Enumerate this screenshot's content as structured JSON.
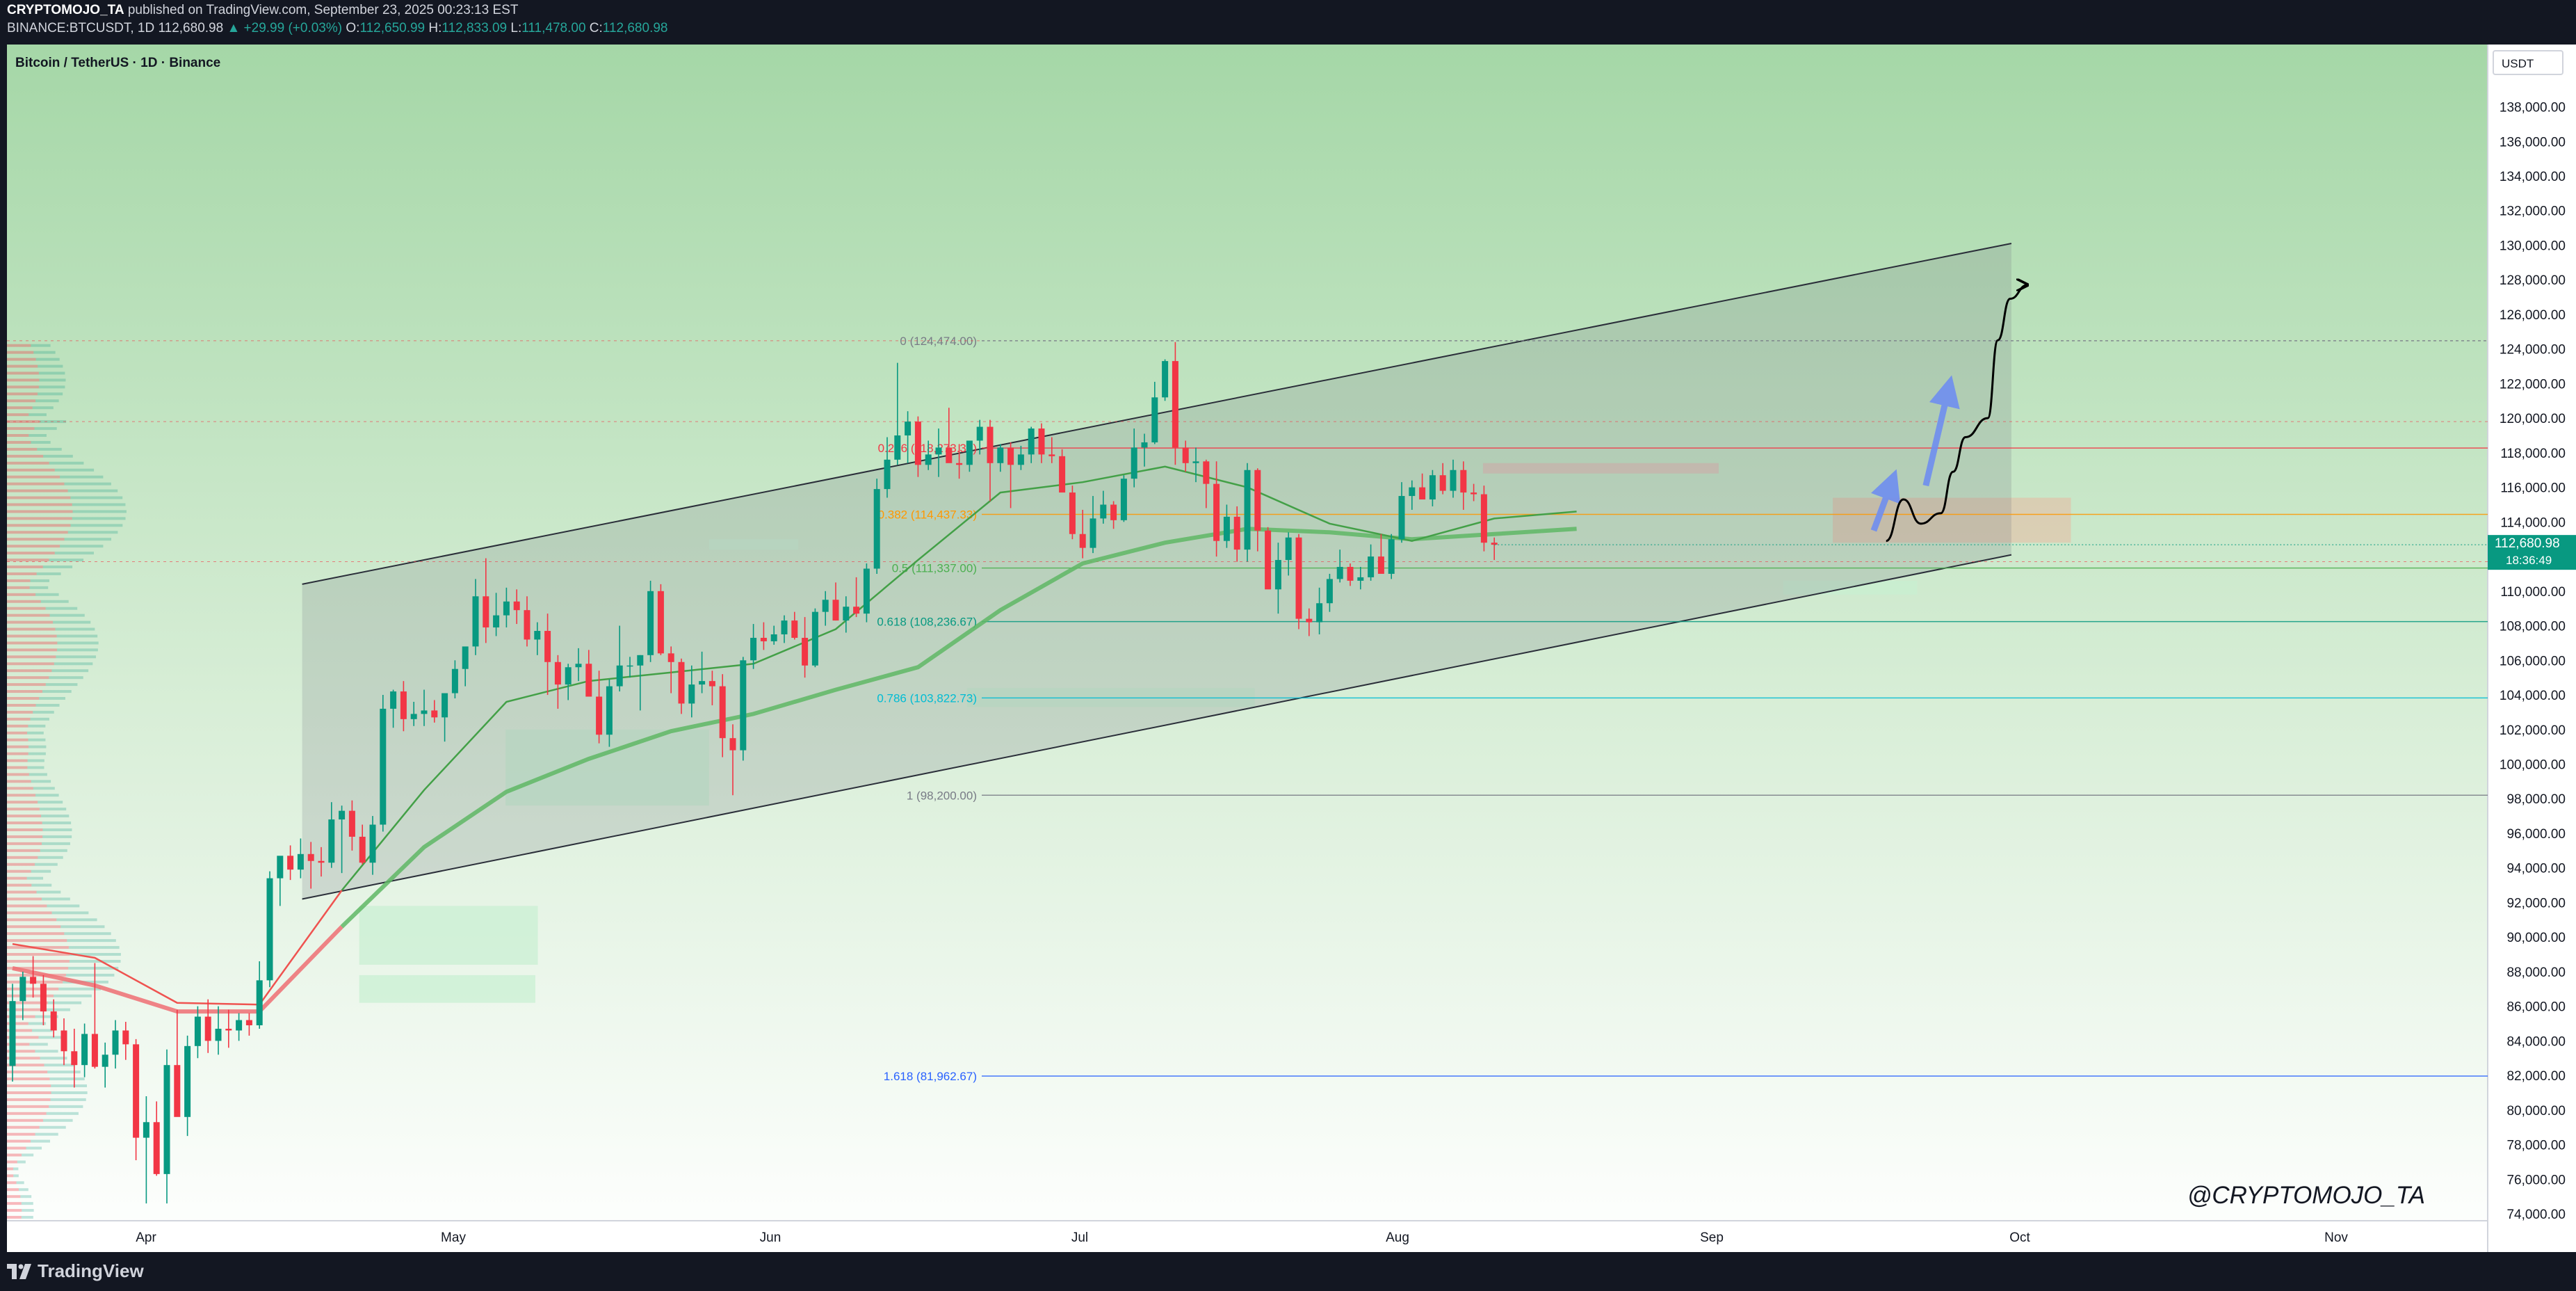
{
  "header": {
    "publisher": "CRYPTOMOJO_TA",
    "published_text": "published on TradingView.com, September 23, 2025 00:23:13 EST",
    "symbol": "BINANCE:BTCUSDT, 1D",
    "last": "112,680.98",
    "change": "▲ +29.99 (+0.03%)",
    "o_label": "O:",
    "o": "112,650.99",
    "h_label": "H:",
    "h": "112,833.09",
    "l_label": "L:",
    "l": "111,478.00",
    "c_label": "C:",
    "c": "112,680.98"
  },
  "footer": {
    "brand": "TradingView"
  },
  "chart_data": {
    "type": "candlestick",
    "title": "Bitcoin / TetherUS · 1D · Binance",
    "currency": "USDT",
    "watermark": "@CRYPTOMOJO_TA",
    "ylim": [
      73600,
      141600
    ],
    "y_ticks": [
      74000,
      76000,
      78000,
      80000,
      82000,
      84000,
      86000,
      88000,
      90000,
      92000,
      94000,
      96000,
      98000,
      100000,
      102000,
      104000,
      106000,
      108000,
      110000,
      112000,
      114000,
      116000,
      118000,
      120000,
      122000,
      124000,
      126000,
      128000,
      130000,
      132000,
      134000,
      136000,
      138000
    ],
    "x_ticks": [
      "Apr",
      "May",
      "Jun",
      "Jul",
      "Aug",
      "Sep",
      "Oct",
      "Nov"
    ],
    "last_price": "112,680.98",
    "countdown": "18:36:49",
    "fib_levels": [
      {
        "label": "0 (124,474.00)",
        "value": 124474,
        "color": "#787b86"
      },
      {
        "label": "0.236 (118,273.34)",
        "value": 118273.34,
        "color": "#f23645"
      },
      {
        "label": "0.382 (114,437.33)",
        "value": 114437.33,
        "color": "#ff9800"
      },
      {
        "label": "0.5 (111,337.00)",
        "value": 111337,
        "color": "#4caf50"
      },
      {
        "label": "0.618 (108,236.67)",
        "value": 108236.67,
        "color": "#089981"
      },
      {
        "label": "0.786 (103,822.73)",
        "value": 103822.73,
        "color": "#00bcd4"
      },
      {
        "label": "1 (98,200.00)",
        "value": 98200,
        "color": "#787b86"
      },
      {
        "label": "1.618 (81,962.67)",
        "value": 81962.67,
        "color": "#2962ff"
      }
    ],
    "candles_ohlc": [
      [
        82550,
        87300,
        81650,
        86300
      ],
      [
        86300,
        88000,
        85200,
        87700
      ],
      [
        87700,
        88900,
        86500,
        87300
      ],
      [
        87300,
        87800,
        84900,
        85700
      ],
      [
        85700,
        86400,
        84200,
        84600
      ],
      [
        84600,
        85300,
        82600,
        83400
      ],
      [
        83400,
        84700,
        81300,
        82600
      ],
      [
        82600,
        85000,
        81900,
        84400
      ],
      [
        84400,
        88500,
        82400,
        82500
      ],
      [
        82500,
        83900,
        81300,
        83200
      ],
      [
        83200,
        85200,
        82400,
        84600
      ],
      [
        84600,
        85100,
        82900,
        83800
      ],
      [
        83800,
        84100,
        77100,
        78400
      ],
      [
        78400,
        80800,
        74600,
        79300
      ],
      [
        79300,
        80500,
        76200,
        76300
      ],
      [
        76300,
        83500,
        74600,
        82600
      ],
      [
        82600,
        85800,
        81200,
        79600
      ],
      [
        79600,
        84300,
        78500,
        83700
      ],
      [
        83700,
        86000,
        83000,
        85400
      ],
      [
        85400,
        86400,
        83300,
        84000
      ],
      [
        84000,
        86000,
        83200,
        84700
      ],
      [
        84700,
        85800,
        83600,
        84600
      ],
      [
        84600,
        85600,
        84000,
        85200
      ],
      [
        85200,
        85600,
        84300,
        84900
      ],
      [
        84900,
        88600,
        84700,
        87500
      ],
      [
        87500,
        93800,
        87100,
        93400
      ],
      [
        93400,
        94500,
        91800,
        94700
      ],
      [
        94700,
        95300,
        93300,
        93900
      ],
      [
        93900,
        95700,
        93400,
        94800
      ],
      [
        94800,
        95500,
        92800,
        94400
      ],
      [
        94400,
        95200,
        93500,
        94300
      ],
      [
        94300,
        97800,
        94000,
        96800
      ],
      [
        96800,
        97600,
        93700,
        97300
      ],
      [
        97300,
        97900,
        95000,
        95800
      ],
      [
        95800,
        96500,
        94200,
        94300
      ],
      [
        94300,
        97000,
        93600,
        96500
      ],
      [
        96500,
        104000,
        96100,
        103200
      ],
      [
        103200,
        104300,
        102100,
        104200
      ],
      [
        104200,
        104800,
        101900,
        102600
      ],
      [
        102600,
        103600,
        102200,
        102900
      ],
      [
        102900,
        104300,
        102200,
        103100
      ],
      [
        103100,
        103700,
        102400,
        102700
      ],
      [
        102700,
        104000,
        101300,
        104100
      ],
      [
        104100,
        106000,
        103800,
        105500
      ],
      [
        105500,
        106700,
        104500,
        106800
      ],
      [
        106800,
        110700,
        106300,
        109700
      ],
      [
        109700,
        111900,
        107000,
        107900
      ],
      [
        107900,
        109900,
        107400,
        108600
      ],
      [
        108600,
        110200,
        107900,
        109400
      ],
      [
        109400,
        110100,
        108100,
        108900
      ],
      [
        108900,
        109700,
        106800,
        107200
      ],
      [
        107200,
        108200,
        106300,
        107700
      ],
      [
        107700,
        108700,
        104000,
        105900
      ],
      [
        105900,
        106300,
        103200,
        104600
      ],
      [
        104600,
        105800,
        103700,
        105600
      ],
      [
        105600,
        106700,
        104800,
        105800
      ],
      [
        105800,
        106600,
        103900,
        103900
      ],
      [
        103900,
        105400,
        101200,
        101700
      ],
      [
        101700,
        104900,
        101000,
        104500
      ],
      [
        104500,
        108000,
        104200,
        105700
      ],
      [
        105700,
        106200,
        105000,
        105700
      ],
      [
        105700,
        106300,
        103100,
        106300
      ],
      [
        106300,
        110600,
        105900,
        110000
      ],
      [
        110000,
        110400,
        106300,
        106400
      ],
      [
        106400,
        106800,
        104100,
        105900
      ],
      [
        105900,
        106100,
        102900,
        103500
      ],
      [
        103500,
        105700,
        102700,
        104600
      ],
      [
        104600,
        106500,
        104100,
        104800
      ],
      [
        104800,
        105400,
        103400,
        104500
      ],
      [
        104500,
        105200,
        100400,
        101500
      ],
      [
        101500,
        102300,
        98200,
        100800
      ],
      [
        100800,
        106200,
        100200,
        106000
      ],
      [
        106000,
        108100,
        105500,
        107300
      ],
      [
        107300,
        108200,
        106600,
        107100
      ],
      [
        107100,
        108000,
        106900,
        107500
      ],
      [
        107500,
        108600,
        107000,
        108300
      ],
      [
        108300,
        108800,
        107200,
        107300
      ],
      [
        107300,
        108500,
        105000,
        105700
      ],
      [
        105700,
        109000,
        105600,
        108800
      ],
      [
        108800,
        110000,
        108000,
        109500
      ],
      [
        109500,
        110500,
        108300,
        108300
      ],
      [
        108300,
        109700,
        107600,
        109100
      ],
      [
        109100,
        110800,
        108500,
        108700
      ],
      [
        108700,
        111600,
        108200,
        111300
      ],
      [
        111300,
        116500,
        111000,
        115900
      ],
      [
        115900,
        118900,
        115400,
        117600
      ],
      [
        117600,
        123200,
        117300,
        119000
      ],
      [
        119000,
        120400,
        117400,
        119800
      ],
      [
        119800,
        120100,
        116600,
        117300
      ],
      [
        117300,
        118700,
        117000,
        117900
      ],
      [
        117900,
        119400,
        116600,
        118300
      ],
      [
        118300,
        120600,
        117800,
        117400
      ],
      [
        117400,
        118500,
        116500,
        117300
      ],
      [
        117300,
        118600,
        116900,
        118700
      ],
      [
        118700,
        119900,
        117900,
        119500
      ],
      [
        119500,
        119900,
        115200,
        117400
      ],
      [
        117400,
        118500,
        116900,
        118300
      ],
      [
        118300,
        118600,
        114800,
        117300
      ],
      [
        117300,
        118400,
        117000,
        117900
      ],
      [
        117900,
        119500,
        117400,
        119400
      ],
      [
        119400,
        119700,
        117400,
        117900
      ],
      [
        117900,
        118900,
        117400,
        117800
      ],
      [
        117800,
        118200,
        115900,
        115700
      ],
      [
        115700,
        116100,
        113000,
        113300
      ],
      [
        113300,
        114700,
        111900,
        112500
      ],
      [
        112500,
        115500,
        112200,
        114200
      ],
      [
        114200,
        115800,
        113900,
        115000
      ],
      [
        115000,
        115200,
        113600,
        114100
      ],
      [
        114100,
        116700,
        114000,
        116500
      ],
      [
        116500,
        119400,
        116000,
        118300
      ],
      [
        118300,
        119100,
        117200,
        118600
      ],
      [
        118600,
        122100,
        118500,
        121200
      ],
      [
        121200,
        123400,
        121000,
        123300
      ],
      [
        123300,
        124400,
        117300,
        118300
      ],
      [
        118300,
        118700,
        116900,
        117400
      ],
      [
        117400,
        118300,
        116300,
        117500
      ],
      [
        117500,
        117600,
        114800,
        116200
      ],
      [
        116200,
        117500,
        112000,
        112900
      ],
      [
        112900,
        115000,
        112500,
        114300
      ],
      [
        114300,
        114900,
        111700,
        112400
      ],
      [
        112400,
        117400,
        111700,
        117000
      ],
      [
        117000,
        117100,
        112300,
        113500
      ],
      [
        113500,
        113700,
        110700,
        110100
      ],
      [
        110100,
        112800,
        108700,
        111800
      ],
      [
        111800,
        113400,
        110900,
        113100
      ],
      [
        113100,
        113300,
        107800,
        108400
      ],
      [
        108400,
        109000,
        107400,
        108200
      ],
      [
        108200,
        110200,
        107500,
        109300
      ],
      [
        109300,
        111000,
        108800,
        110700
      ],
      [
        110700,
        112400,
        110500,
        111400
      ],
      [
        111400,
        111600,
        110300,
        110600
      ],
      [
        110600,
        111400,
        110100,
        110800
      ],
      [
        110800,
        112700,
        110600,
        112000
      ],
      [
        112000,
        113300,
        111200,
        111000
      ],
      [
        111000,
        113300,
        110700,
        113000
      ],
      [
        113000,
        116300,
        112800,
        115500
      ],
      [
        115500,
        116400,
        114700,
        116000
      ],
      [
        116000,
        116800,
        115400,
        115300
      ],
      [
        115300,
        117000,
        114900,
        116700
      ],
      [
        116700,
        117400,
        115600,
        115800
      ],
      [
        115800,
        117600,
        115400,
        117000
      ],
      [
        117000,
        117500,
        114700,
        115700
      ],
      [
        115700,
        116200,
        115200,
        115600
      ],
      [
        115600,
        116100,
        112300,
        112800
      ],
      [
        112800,
        113100,
        111800,
        112681
      ]
    ],
    "ema_fast": [
      [
        0,
        89600
      ],
      [
        8,
        88800
      ],
      [
        16,
        86200
      ],
      [
        24,
        86100
      ],
      [
        32,
        92700
      ],
      [
        40,
        98500
      ],
      [
        48,
        103600
      ],
      [
        56,
        104800
      ],
      [
        64,
        105300
      ],
      [
        72,
        105800
      ],
      [
        80,
        107800
      ],
      [
        88,
        111800
      ],
      [
        96,
        115700
      ],
      [
        104,
        116300
      ],
      [
        112,
        117200
      ],
      [
        120,
        116000
      ],
      [
        128,
        113900
      ],
      [
        136,
        112900
      ],
      [
        144,
        114200
      ],
      [
        152,
        114600
      ]
    ],
    "ema_slow": [
      [
        0,
        88200
      ],
      [
        8,
        87200
      ],
      [
        16,
        85700
      ],
      [
        24,
        85700
      ],
      [
        32,
        90600
      ],
      [
        40,
        95200
      ],
      [
        48,
        98400
      ],
      [
        56,
        100300
      ],
      [
        64,
        101900
      ],
      [
        72,
        102900
      ],
      [
        80,
        104300
      ],
      [
        88,
        105600
      ],
      [
        96,
        108900
      ],
      [
        104,
        111600
      ],
      [
        112,
        112800
      ],
      [
        120,
        113600
      ],
      [
        128,
        113400
      ],
      [
        136,
        113000
      ],
      [
        144,
        113300
      ],
      [
        152,
        113600
      ]
    ],
    "channel_upper": [
      [
        0.119,
        110400
      ],
      [
        0.808,
        130100
      ]
    ],
    "channel_lower": [
      [
        0.119,
        92200
      ],
      [
        0.808,
        112100
      ]
    ],
    "projection_path": [
      [
        0.7575,
        112900
      ],
      [
        0.7645,
        115300
      ],
      [
        0.7715,
        113900
      ],
      [
        0.7795,
        114500
      ],
      [
        0.7845,
        116900
      ],
      [
        0.7895,
        118900
      ],
      [
        0.7985,
        120000
      ],
      [
        0.8025,
        124500
      ],
      [
        0.8075,
        126900
      ],
      [
        0.8145,
        127700
      ]
    ],
    "projection_arrows": [
      [
        [
          0.7525,
          113500
        ],
        [
          0.7595,
          116200
        ]
      ],
      [
        [
          0.7735,
          116100
        ],
        [
          0.7825,
          121600
        ]
      ]
    ]
  }
}
